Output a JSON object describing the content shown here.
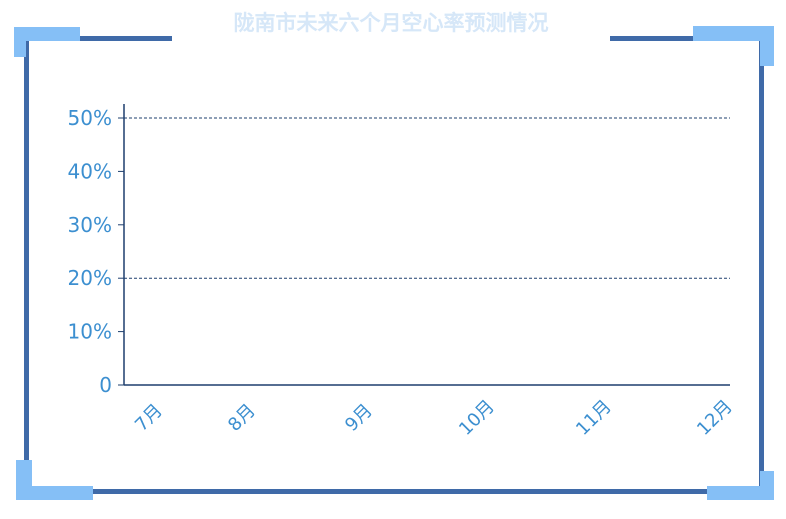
{
  "chart_data": {
    "type": "line",
    "title": "陇南市未来六个月空心率预测情况",
    "categories": [
      "7月",
      "8月",
      "9月",
      "10月",
      "11月",
      "12月"
    ],
    "series": [],
    "y_ticks": [
      "0",
      "10%",
      "20%",
      "30%",
      "40%",
      "50%"
    ],
    "ylim": [
      0,
      0.5
    ],
    "gridlines_at": [
      0.2,
      0.5
    ],
    "grid": "dashed horizontal at 20% and 50%",
    "colors": {
      "frame": "#3f6aa8",
      "corner_accent": "#85bff6",
      "title": "#d6e7f8",
      "tick_label": "#3c8fd0",
      "axis": "#1e3f6e"
    }
  }
}
